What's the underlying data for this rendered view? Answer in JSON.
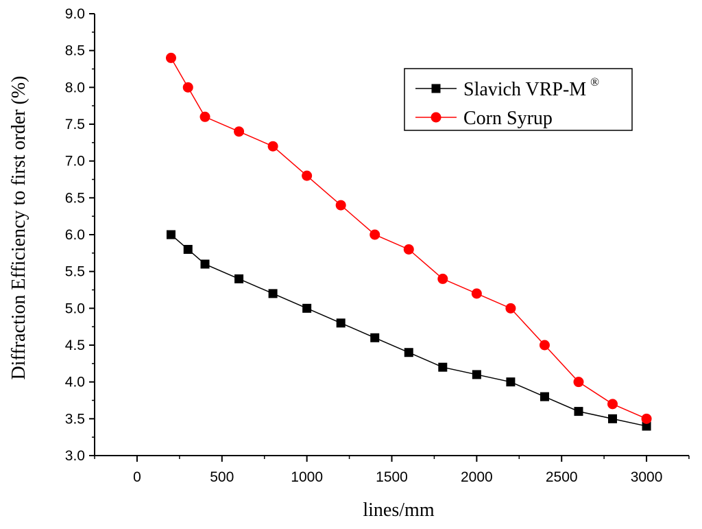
{
  "chart_data": {
    "type": "line",
    "title": "",
    "xlabel": "lines/mm",
    "ylabel": "Diffraction Efficiency to first order (%)",
    "xlim": [
      -250,
      3250
    ],
    "ylim": [
      3.0,
      9.0
    ],
    "x_ticks": [
      0,
      500,
      1000,
      1500,
      2000,
      2500,
      3000
    ],
    "y_ticks": [
      "3.0",
      "3.5",
      "4.0",
      "4.5",
      "5.0",
      "5.5",
      "6.0",
      "6.5",
      "7.0",
      "7.5",
      "8.0",
      "8.5",
      "9.0"
    ],
    "legend_position": "top-right",
    "series": [
      {
        "name": "Slavich VRP-M",
        "name_superscript": "®",
        "color": "#000000",
        "marker": "square",
        "x": [
          200,
          300,
          400,
          600,
          800,
          1000,
          1200,
          1400,
          1600,
          1800,
          2000,
          2200,
          2400,
          2600,
          2800,
          3000
        ],
        "y": [
          6.0,
          5.8,
          5.6,
          5.4,
          5.2,
          5.0,
          4.8,
          4.6,
          4.4,
          4.2,
          4.1,
          4.0,
          3.8,
          3.6,
          3.5,
          3.4
        ]
      },
      {
        "name": "Corn Syrup",
        "name_superscript": "",
        "color": "#ff0000",
        "marker": "circle",
        "x": [
          200,
          300,
          400,
          600,
          800,
          1000,
          1200,
          1400,
          1600,
          1800,
          2000,
          2200,
          2400,
          2600,
          2800,
          3000
        ],
        "y": [
          8.4,
          8.0,
          7.6,
          7.4,
          7.2,
          6.8,
          6.4,
          6.0,
          5.8,
          5.4,
          5.2,
          5.0,
          4.5,
          4.0,
          3.7,
          3.5
        ]
      }
    ]
  }
}
